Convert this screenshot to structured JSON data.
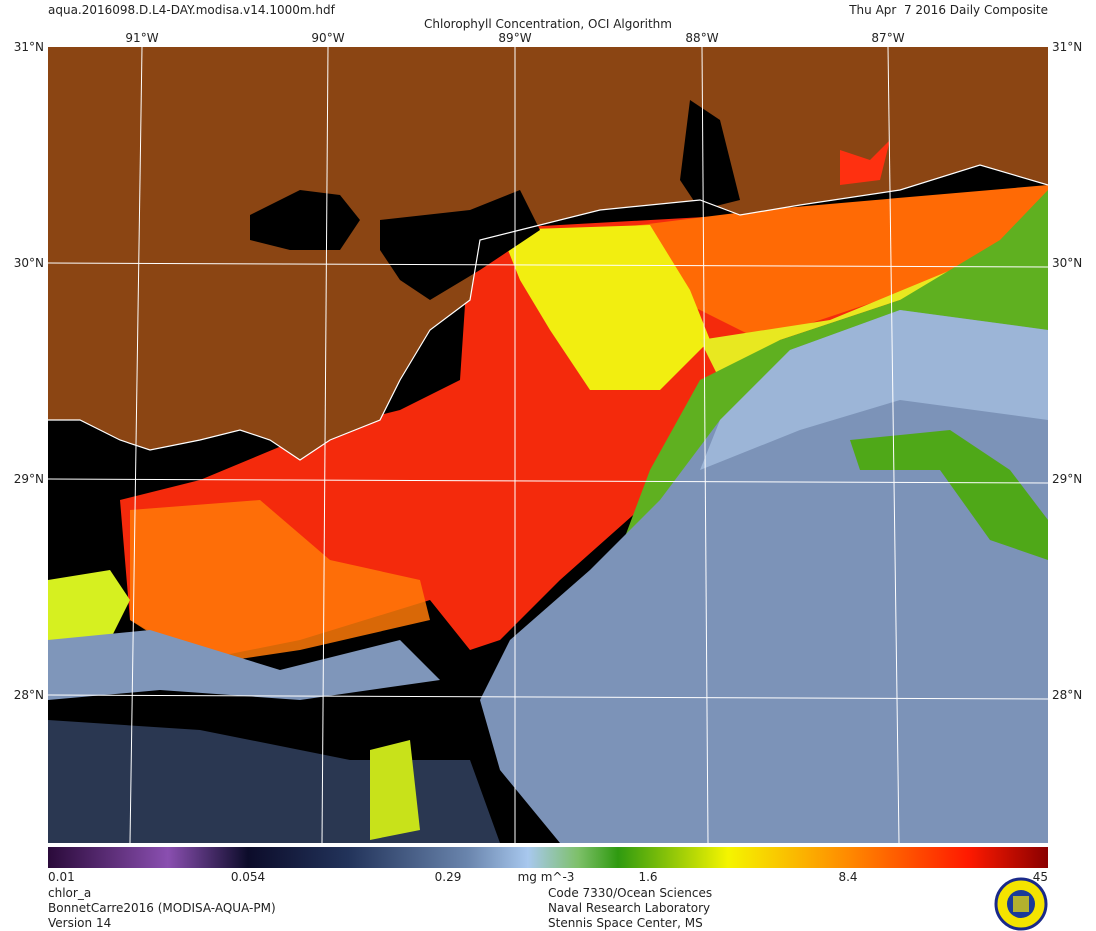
{
  "header": {
    "file": "aqua.2016098.D.L4-DAY.modisa.v14.1000m.hdf",
    "title": "Chlorophyll Concentration, OCI Algorithm",
    "date": "Thu Apr  7 2016 Daily Composite"
  },
  "map": {
    "lat_labels": [
      "31°N",
      "30°N",
      "29°N",
      "28°N"
    ],
    "lon_labels": [
      "91°W",
      "90°W",
      "89°W",
      "88°W",
      "87°W"
    ]
  },
  "colorbar": {
    "labels": [
      "0.01",
      "0.054",
      "0.29",
      "1.6",
      "8.4",
      "45"
    ],
    "units": "mg m^-3"
  },
  "footer": {
    "left": [
      "chlor_a",
      "BonnetCarre2016 (MODISA-AQUA-PM)",
      "Version 14"
    ],
    "center": [
      "Code 7330/Ocean Sciences",
      "Naval Research Laboratory",
      "Stennis Space Center, MS"
    ]
  }
}
